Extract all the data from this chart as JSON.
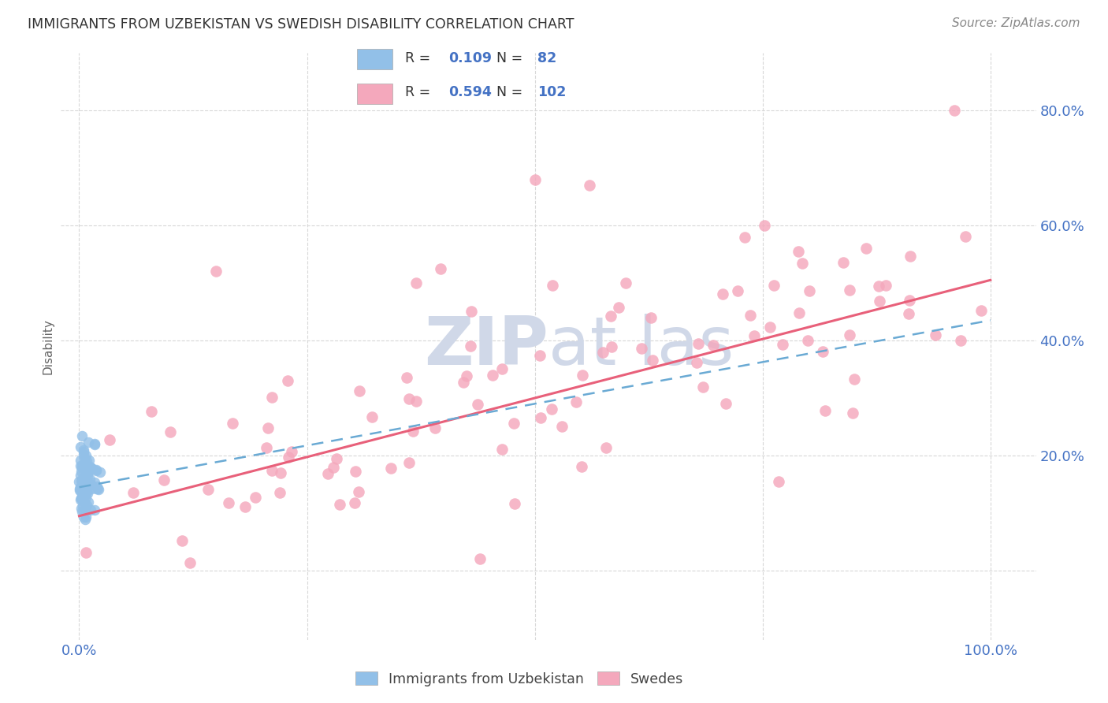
{
  "title": "IMMIGRANTS FROM UZBEKISTAN VS SWEDISH DISABILITY CORRELATION CHART",
  "source": "Source: ZipAtlas.com",
  "ylabel": "Disability",
  "xlim": [
    -0.02,
    1.05
  ],
  "ylim": [
    -0.12,
    0.9
  ],
  "x_ticks": [
    0.0,
    0.25,
    0.5,
    0.75,
    1.0
  ],
  "x_tick_labels": [
    "0.0%",
    "",
    "",
    "",
    "100.0%"
  ],
  "y_ticks": [
    0.0,
    0.2,
    0.4,
    0.6,
    0.8
  ],
  "y_tick_labels": [
    "",
    "20.0%",
    "40.0%",
    "60.0%",
    "80.0%"
  ],
  "grid_color": "#d8d8d8",
  "background_color": "#ffffff",
  "legend_r_blue": "0.109",
  "legend_n_blue": "82",
  "legend_r_pink": "0.594",
  "legend_n_pink": "102",
  "blue_color": "#92c0e8",
  "pink_color": "#f4a8bc",
  "blue_line_color": "#6aaad4",
  "pink_line_color": "#e8607a",
  "title_color": "#333333",
  "source_color": "#888888",
  "axis_label_color": "#666666",
  "tick_color": "#4472c4",
  "watermark_color": "#d0d8e8",
  "blue_trend_x": [
    0.0,
    1.0
  ],
  "blue_trend_y": [
    0.145,
    0.435
  ],
  "pink_trend_x": [
    0.0,
    1.0
  ],
  "pink_trend_y": [
    0.095,
    0.505
  ]
}
